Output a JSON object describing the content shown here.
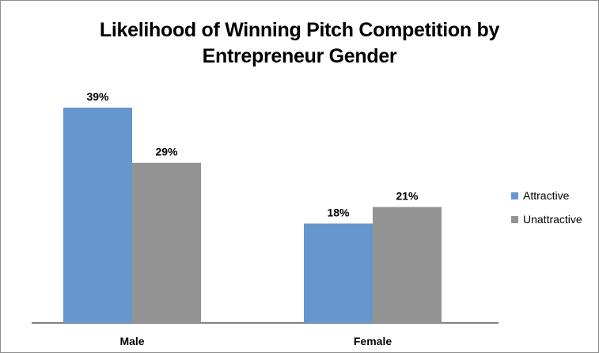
{
  "chart_data": {
    "type": "bar",
    "title_lines": [
      "Likelihood of Winning Pitch Competition by",
      "Entrepreneur Gender"
    ],
    "categories": [
      "Male",
      "Female"
    ],
    "series": [
      {
        "name": "Attractive",
        "values": [
          39,
          18
        ],
        "labels": [
          "39%",
          "18%"
        ],
        "color": "#6596cd"
      },
      {
        "name": "Unattractive",
        "values": [
          29,
          21
        ],
        "labels": [
          "29%",
          "21%"
        ],
        "color": "#939393"
      }
    ],
    "xlabel": "",
    "ylabel": "",
    "ylim": [
      0,
      45
    ],
    "grid": false,
    "legend_position": "right"
  }
}
